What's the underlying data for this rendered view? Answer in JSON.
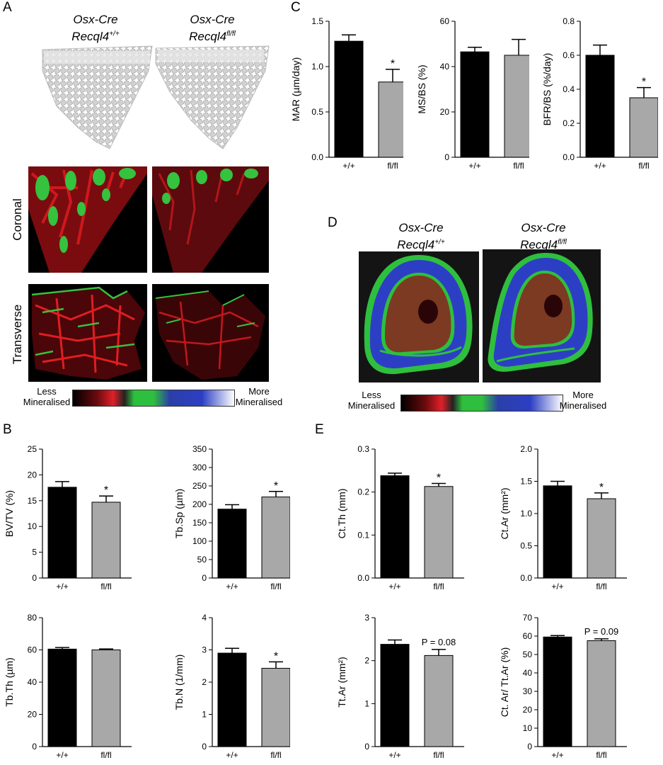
{
  "panels": {
    "A": "A",
    "B": "B",
    "C": "C",
    "D": "D",
    "E": "E"
  },
  "genotypes": {
    "wt_line1": "Osx-Cre",
    "wt_line2": "Recql4",
    "wt_sup": "+/+",
    "ko_line1": "Osx-Cre",
    "ko_line2": "Recql4",
    "ko_sup": "fl/fl"
  },
  "views": {
    "coronal": "Coronal",
    "transverse": "Transverse"
  },
  "gradient": {
    "less": "Less",
    "less2": "Mineralised",
    "more": "More",
    "more2": "Mineralised"
  },
  "colors": {
    "wt_bar": "#000000",
    "ko_bar": "#a8a8a8",
    "bone_red": "#c0141c",
    "bone_green": "#2fbf3e",
    "bone_blue": "#2c3fc4"
  },
  "chart_data": [
    {
      "id": "C1",
      "type": "bar",
      "categories": [
        "+/+",
        "fl/fl"
      ],
      "values": [
        1.28,
        0.83
      ],
      "errors": [
        0.07,
        0.14
      ],
      "ylabel": "MAR (µm/day)",
      "ylim": [
        0,
        1.5
      ],
      "yticks": [
        "0.0",
        "0.5",
        "1.0",
        "1.5"
      ],
      "annotations": [
        "",
        "*"
      ]
    },
    {
      "id": "C2",
      "type": "bar",
      "categories": [
        "+/+",
        "fl/fl"
      ],
      "values": [
        46.5,
        45
      ],
      "errors": [
        2,
        7
      ],
      "ylabel": "MS/BS (%)",
      "ylim": [
        0,
        60
      ],
      "yticks": [
        "0",
        "20",
        "40",
        "60"
      ],
      "annotations": [
        "",
        ""
      ]
    },
    {
      "id": "C3",
      "type": "bar",
      "categories": [
        "+/+",
        "fl/fl"
      ],
      "values": [
        0.6,
        0.35
      ],
      "errors": [
        0.06,
        0.06
      ],
      "ylabel": "BFR/BS (%/day)",
      "ylim": [
        0,
        0.8
      ],
      "yticks": [
        "0.0",
        "0.2",
        "0.4",
        "0.6",
        "0.8"
      ],
      "annotations": [
        "",
        "*"
      ]
    },
    {
      "id": "B1",
      "type": "bar",
      "categories": [
        "+/+",
        "fl/fl"
      ],
      "values": [
        17.6,
        14.7
      ],
      "errors": [
        1.1,
        1.2
      ],
      "ylabel": "BV/TV (%)",
      "ylim": [
        0,
        25
      ],
      "yticks": [
        "0",
        "5",
        "10",
        "15",
        "20",
        "25"
      ],
      "annotations": [
        "",
        "*"
      ]
    },
    {
      "id": "B2",
      "type": "bar",
      "categories": [
        "+/+",
        "fl/fl"
      ],
      "values": [
        187,
        220
      ],
      "errors": [
        12,
        15
      ],
      "ylabel": "Tb.Sp (µm)",
      "ylim": [
        0,
        350
      ],
      "yticks": [
        "0",
        "50",
        "100",
        "150",
        "200",
        "250",
        "300",
        "350"
      ],
      "annotations": [
        "",
        "*"
      ]
    },
    {
      "id": "B3",
      "type": "bar",
      "categories": [
        "+/+",
        "fl/fl"
      ],
      "values": [
        60.5,
        60
      ],
      "errors": [
        1,
        0.6
      ],
      "ylabel": "Tb.Th (µm)",
      "ylim": [
        0,
        80
      ],
      "yticks": [
        "0",
        "20",
        "40",
        "60",
        "80"
      ],
      "annotations": [
        "",
        ""
      ]
    },
    {
      "id": "B4",
      "type": "bar",
      "categories": [
        "+/+",
        "fl/fl"
      ],
      "values": [
        2.9,
        2.43
      ],
      "errors": [
        0.15,
        0.2
      ],
      "ylabel": "Tb.N (1/mm)",
      "ylim": [
        0,
        4
      ],
      "yticks": [
        "0",
        "1",
        "2",
        "3",
        "4"
      ],
      "annotations": [
        "",
        "*"
      ]
    },
    {
      "id": "E1",
      "type": "bar",
      "categories": [
        "+/+",
        "fl/fl"
      ],
      "values": [
        0.238,
        0.213
      ],
      "errors": [
        0.006,
        0.007
      ],
      "ylabel": "Ct.Th (mm)",
      "ylim": [
        0,
        0.3
      ],
      "yticks": [
        "0.0",
        "0.1",
        "0.2",
        "0.3"
      ],
      "annotations": [
        "",
        "*"
      ]
    },
    {
      "id": "E2",
      "type": "bar",
      "categories": [
        "+/+",
        "fl/fl"
      ],
      "values": [
        1.43,
        1.23
      ],
      "errors": [
        0.07,
        0.09
      ],
      "ylabel": "Ct.Ar (mm²)",
      "ylim": [
        0,
        2.0
      ],
      "yticks": [
        "0.0",
        "0.5",
        "1.0",
        "1.5",
        "2.0"
      ],
      "annotations": [
        "",
        "*"
      ]
    },
    {
      "id": "E3",
      "type": "bar",
      "categories": [
        "+/+",
        "fl/fl"
      ],
      "values": [
        2.38,
        2.12
      ],
      "errors": [
        0.1,
        0.14
      ],
      "ylabel": "Tt.Ar (mm²)",
      "ylim": [
        0,
        3
      ],
      "yticks": [
        "0",
        "1",
        "2",
        "3"
      ],
      "annotations": [
        "",
        "P = 0.08"
      ]
    },
    {
      "id": "E4",
      "type": "bar",
      "categories": [
        "+/+",
        "fl/fl"
      ],
      "values": [
        59.5,
        57.5
      ],
      "errors": [
        0.8,
        1
      ],
      "ylabel": "Ct. Ar/ Tt.Ar (%)",
      "ylim": [
        0,
        70
      ],
      "yticks": [
        "0",
        "10",
        "20",
        "30",
        "40",
        "50",
        "60",
        "70"
      ],
      "annotations": [
        "",
        "P = 0.09"
      ]
    }
  ]
}
